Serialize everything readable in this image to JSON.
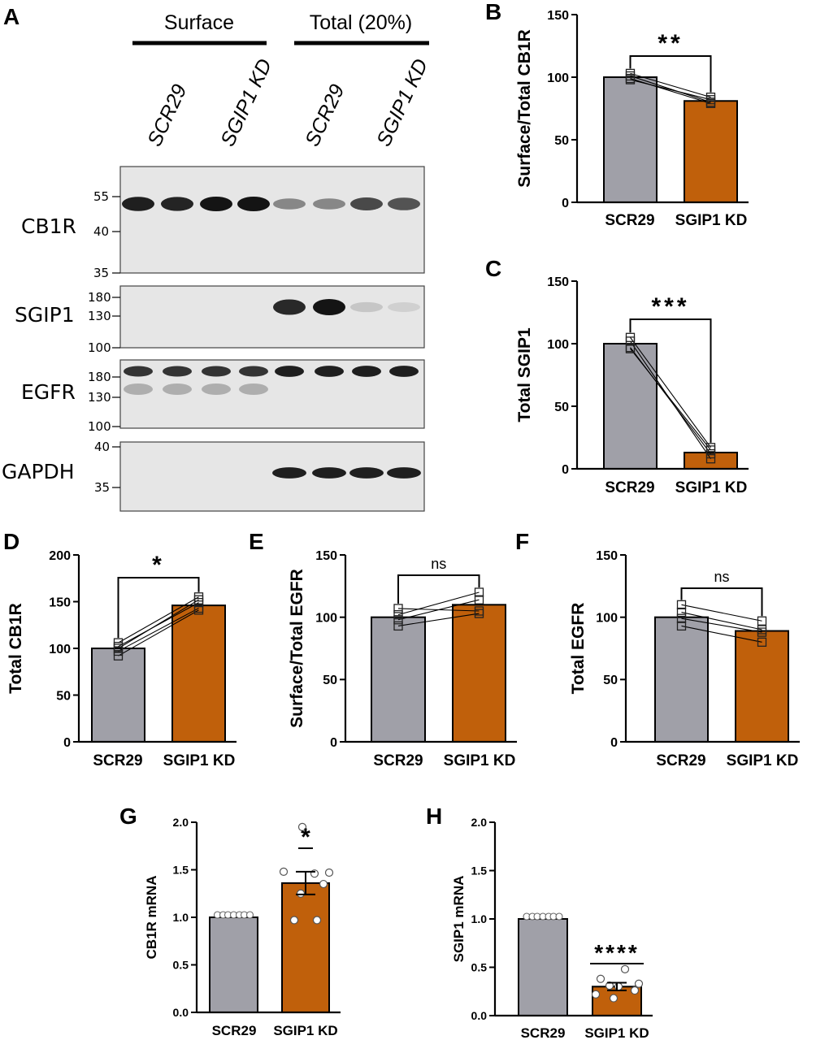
{
  "colors": {
    "scr": "#a0a0a8",
    "kd": "#c0600b",
    "blot_bg": "#e6e6e6",
    "band": "#141414"
  },
  "blot": {
    "panel_letter": "A",
    "group_labels": [
      "Surface",
      "Total (20%)"
    ],
    "lane_labels": [
      "SCR29",
      "SGIP1 KD",
      "SCR29",
      "SGIP1 KD"
    ],
    "markers": {
      "CB1R": [
        "55",
        "40",
        "35"
      ],
      "SGIP1": [
        "180",
        "130",
        "100"
      ],
      "EGFR": [
        "180",
        "130",
        "100"
      ],
      "GAPDH": [
        "40",
        "35"
      ]
    },
    "row_labels": [
      "CB1R",
      "SGIP1",
      "EGFR",
      "GAPDH"
    ],
    "band_intensity": {
      "CB1R": [
        0.95,
        0.92,
        1.0,
        1.0,
        0.45,
        0.45,
        0.75,
        0.7
      ],
      "SGIP1": [
        0,
        0,
        0,
        0,
        0.9,
        1.0,
        0.15,
        0.1
      ],
      "EGFR": [
        0.85,
        0.85,
        0.85,
        0.85,
        0.95,
        0.95,
        0.95,
        0.95
      ],
      "GAPDH": [
        0,
        0,
        0,
        0,
        0.95,
        0.95,
        0.95,
        0.95
      ]
    }
  },
  "chart_data": [
    {
      "panel": "B",
      "type": "bar",
      "ylabel": "Surface/Total CB1R",
      "categories": [
        "SCR29",
        "SGIP1 KD"
      ],
      "ylim": [
        0,
        150
      ],
      "yticks": [
        "0",
        "50",
        "100",
        "150"
      ],
      "values": [
        100,
        81
      ],
      "paired_points": [
        [
          101,
          80
        ],
        [
          103,
          84
        ],
        [
          98,
          82
        ],
        [
          99,
          79
        ]
      ],
      "significance": "**"
    },
    {
      "panel": "C",
      "type": "bar",
      "ylabel": "Total SGIP1",
      "categories": [
        "SCR29",
        "SGIP1 KD"
      ],
      "ylim": [
        0,
        150
      ],
      "yticks": [
        "0",
        "50",
        "100",
        "150"
      ],
      "values": [
        100,
        13
      ],
      "paired_points": [
        [
          105,
          17
        ],
        [
          102,
          8
        ],
        [
          97,
          12
        ],
        [
          96,
          15
        ]
      ],
      "significance": "***"
    },
    {
      "panel": "D",
      "type": "bar",
      "ylabel": "Total CB1R",
      "categories": [
        "SCR29",
        "SGIP1 KD"
      ],
      "ylim": [
        0,
        200
      ],
      "yticks": [
        "0",
        "50",
        "100",
        "150",
        "200"
      ],
      "values": [
        100,
        146
      ],
      "paired_points": [
        [
          106,
          155
        ],
        [
          102,
          149
        ],
        [
          97,
          143
        ],
        [
          92,
          141
        ],
        [
          100,
          152
        ]
      ],
      "significance": "*"
    },
    {
      "panel": "E",
      "type": "bar",
      "ylabel": "Surface/Total EGFR",
      "categories": [
        "SCR29",
        "SGIP1 KD"
      ],
      "ylim": [
        0,
        150
      ],
      "yticks": [
        "0",
        "50",
        "100",
        "150"
      ],
      "values": [
        100,
        110
      ],
      "paired_points": [
        [
          107,
          105
        ],
        [
          102,
          120
        ],
        [
          98,
          114
        ],
        [
          93,
          103
        ]
      ],
      "significance": "ns"
    },
    {
      "panel": "F",
      "type": "bar",
      "ylabel": "Total EGFR",
      "categories": [
        "SCR29",
        "SGIP1 KD"
      ],
      "ylim": [
        0,
        150
      ],
      "yticks": [
        "0",
        "50",
        "100",
        "150"
      ],
      "values": [
        100,
        89
      ],
      "paired_points": [
        [
          110,
          97
        ],
        [
          104,
          90
        ],
        [
          99,
          88
        ],
        [
          93,
          80
        ]
      ],
      "significance": "ns"
    },
    {
      "panel": "G",
      "type": "bar",
      "ylabel": "CB1R mRNA",
      "categories": [
        "SCR29",
        "SGIP1 KD"
      ],
      "ylim": [
        0,
        2
      ],
      "yticks": [
        "0.0",
        "0.5",
        "1.0",
        "1.5",
        "2.0"
      ],
      "values": [
        1.0,
        1.36
      ],
      "sem": [
        0,
        0.12
      ],
      "points": [
        [
          1,
          1,
          1,
          1,
          1,
          1,
          1
        ],
        [
          1.95,
          1.48,
          1.47,
          1.46,
          1.35,
          1.25,
          0.97,
          0.97
        ]
      ],
      "significance": "*"
    },
    {
      "panel": "H",
      "type": "bar",
      "ylabel": "SGIP1 mRNA",
      "categories": [
        "SCR29",
        "SGIP1 KD"
      ],
      "ylim": [
        0,
        2
      ],
      "yticks": [
        "0.0",
        "0.5",
        "1.0",
        "1.5",
        "2.0"
      ],
      "values": [
        1.0,
        0.3
      ],
      "sem": [
        0,
        0.04
      ],
      "points": [
        [
          1,
          1,
          1,
          1,
          1,
          1,
          1
        ],
        [
          0.48,
          0.38,
          0.33,
          0.31,
          0.3,
          0.26,
          0.22,
          0.18
        ]
      ],
      "significance": "****"
    }
  ]
}
